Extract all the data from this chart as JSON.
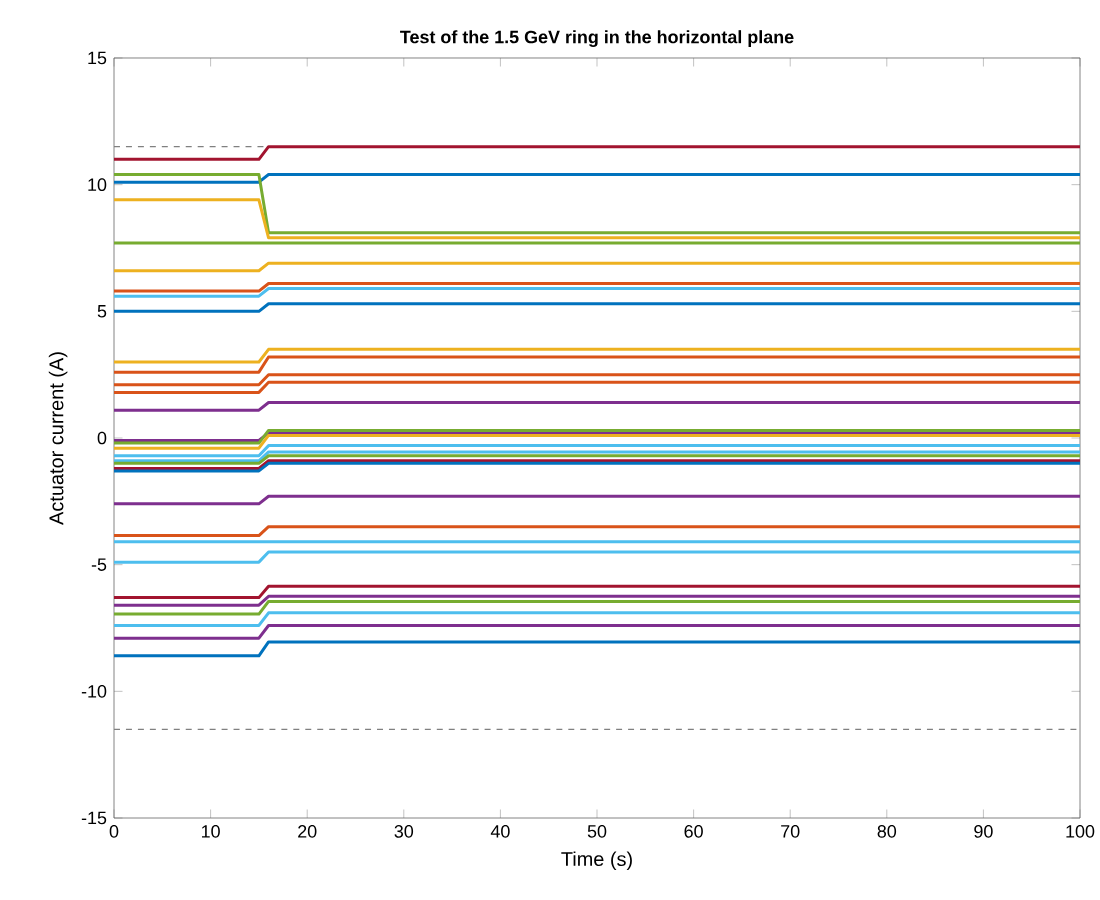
{
  "chart_data": {
    "type": "line",
    "title": "Test of the 1.5 GeV ring in the horizontal plane",
    "xlabel": "Time (s)",
    "ylabel": "Actuator current (A)",
    "x": [
      0,
      15,
      16,
      100
    ],
    "xlim": [
      0,
      100
    ],
    "ylim": [
      -15,
      15
    ],
    "xticks": [
      0,
      10,
      20,
      30,
      40,
      50,
      60,
      70,
      80,
      90,
      100
    ],
    "yticks": [
      -15,
      -10,
      -5,
      0,
      5,
      10,
      15
    ],
    "grid": false,
    "marker": "none",
    "line_style": "solid",
    "ref_lines": [
      {
        "axis": "y",
        "value": 11.5,
        "color": "#808080",
        "line_style": "dashed"
      },
      {
        "axis": "y",
        "value": -11.5,
        "color": "#808080",
        "line_style": "dashed"
      }
    ],
    "series": [
      {
        "color": "#a2142f",
        "values": [
          11.0,
          11.0,
          11.5,
          11.5
        ]
      },
      {
        "color": "#0072bd",
        "values": [
          10.1,
          10.1,
          10.4,
          10.4
        ]
      },
      {
        "color": "#77ac30",
        "values": [
          10.4,
          10.4,
          8.1,
          8.1
        ]
      },
      {
        "color": "#edb120",
        "values": [
          9.4,
          9.4,
          7.9,
          7.9
        ]
      },
      {
        "color": "#77ac30",
        "values": [
          7.7,
          7.7,
          7.7,
          7.7
        ]
      },
      {
        "color": "#edb120",
        "values": [
          6.6,
          6.6,
          6.9,
          6.9
        ]
      },
      {
        "color": "#d95319",
        "values": [
          5.8,
          5.8,
          6.1,
          6.1
        ]
      },
      {
        "color": "#4dbeee",
        "values": [
          5.6,
          5.6,
          5.9,
          5.9
        ]
      },
      {
        "color": "#0072bd",
        "values": [
          5.0,
          5.0,
          5.3,
          5.3
        ]
      },
      {
        "color": "#edb120",
        "values": [
          3.0,
          3.0,
          3.5,
          3.5
        ]
      },
      {
        "color": "#d95319",
        "values": [
          2.6,
          2.6,
          3.2,
          3.2
        ]
      },
      {
        "color": "#d95319",
        "values": [
          2.1,
          2.1,
          2.5,
          2.5
        ]
      },
      {
        "color": "#d95319",
        "values": [
          1.8,
          1.8,
          2.2,
          2.2
        ]
      },
      {
        "color": "#7e2f8e",
        "values": [
          1.1,
          1.1,
          1.4,
          1.4
        ]
      },
      {
        "color": "#7e2f8e",
        "values": [
          -0.1,
          -0.1,
          0.2,
          0.2
        ]
      },
      {
        "color": "#77ac30",
        "values": [
          -0.2,
          -0.2,
          0.3,
          0.3
        ]
      },
      {
        "color": "#edb120",
        "values": [
          -0.4,
          -0.4,
          0.1,
          0.1
        ]
      },
      {
        "color": "#4dbeee",
        "values": [
          -0.7,
          -0.7,
          -0.3,
          -0.3
        ]
      },
      {
        "color": "#4dbeee",
        "values": [
          -0.9,
          -0.9,
          -0.55,
          -0.55
        ]
      },
      {
        "color": "#77ac30",
        "values": [
          -1.0,
          -1.0,
          -0.7,
          -0.7
        ]
      },
      {
        "color": "#a2142f",
        "values": [
          -1.2,
          -1.2,
          -0.9,
          -0.9
        ]
      },
      {
        "color": "#0072bd",
        "values": [
          -1.3,
          -1.3,
          -1.0,
          -1.0
        ]
      },
      {
        "color": "#7e2f8e",
        "values": [
          -2.6,
          -2.6,
          -2.3,
          -2.3
        ]
      },
      {
        "color": "#d95319",
        "values": [
          -3.85,
          -3.85,
          -3.5,
          -3.5
        ]
      },
      {
        "color": "#4dbeee",
        "values": [
          -4.1,
          -4.1,
          -4.1,
          -4.1
        ]
      },
      {
        "color": "#4dbeee",
        "values": [
          -4.9,
          -4.9,
          -4.5,
          -4.5
        ]
      },
      {
        "color": "#a2142f",
        "values": [
          -6.3,
          -6.3,
          -5.85,
          -5.85
        ]
      },
      {
        "color": "#7e2f8e",
        "values": [
          -6.6,
          -6.6,
          -6.25,
          -6.25
        ]
      },
      {
        "color": "#77ac30",
        "values": [
          -6.95,
          -6.95,
          -6.45,
          -6.45
        ]
      },
      {
        "color": "#4dbeee",
        "values": [
          -7.4,
          -7.4,
          -6.9,
          -6.9
        ]
      },
      {
        "color": "#7e2f8e",
        "values": [
          -7.9,
          -7.9,
          -7.4,
          -7.4
        ]
      },
      {
        "color": "#0072bd",
        "values": [
          -8.6,
          -8.6,
          -8.05,
          -8.05
        ]
      }
    ]
  }
}
